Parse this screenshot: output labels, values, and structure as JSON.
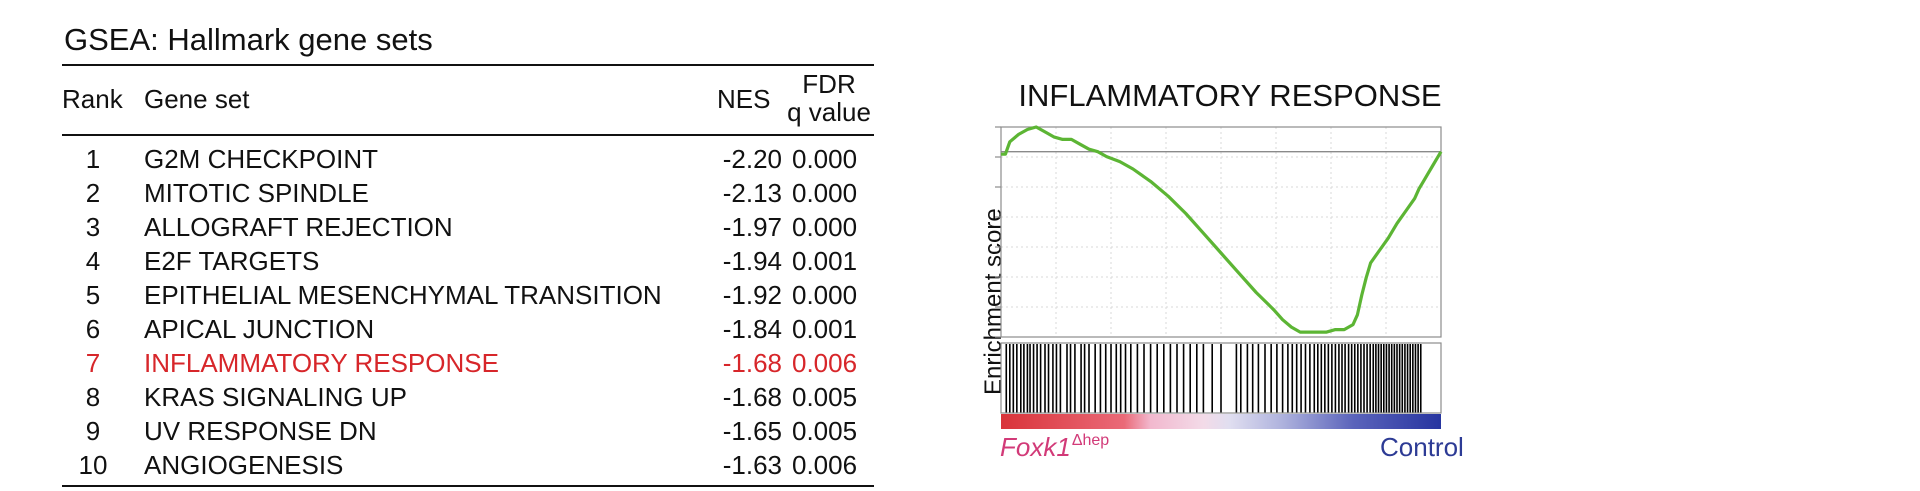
{
  "table": {
    "title": "GSEA: Hallmark gene sets",
    "headers": {
      "rank": "Rank",
      "gene_set": "Gene set",
      "nes": "NES",
      "fdr_line1": "FDR",
      "fdr_line2": "q value"
    },
    "rows": [
      {
        "rank": "1",
        "gene_set": "G2M CHECKPOINT",
        "nes": "-2.20",
        "fdr": "0.000"
      },
      {
        "rank": "2",
        "gene_set": "MITOTIC SPINDLE",
        "nes": "-2.13",
        "fdr": "0.000"
      },
      {
        "rank": "3",
        "gene_set": "ALLOGRAFT REJECTION",
        "nes": "-1.97",
        "fdr": "0.000"
      },
      {
        "rank": "4",
        "gene_set": "E2F TARGETS",
        "nes": "-1.94",
        "fdr": "0.001"
      },
      {
        "rank": "5",
        "gene_set": "EPITHELIAL MESENCHYMAL TRANSITION",
        "nes": "-1.92",
        "fdr": "0.000"
      },
      {
        "rank": "6",
        "gene_set": "APICAL JUNCTION",
        "nes": "-1.84",
        "fdr": "0.001"
      },
      {
        "rank": "7",
        "gene_set": "INFLAMMATORY RESPONSE",
        "nes": "-1.68",
        "fdr": "0.006",
        "highlight": true
      },
      {
        "rank": "8",
        "gene_set": "KRAS SIGNALING UP",
        "nes": "-1.68",
        "fdr": "0.005"
      },
      {
        "rank": "9",
        "gene_set": "UV RESPONSE DN",
        "nes": "-1.65",
        "fdr": "0.005"
      },
      {
        "rank": "10",
        "gene_set": "ANGIOGENESIS",
        "nes": "-1.63",
        "fdr": "0.006"
      }
    ],
    "highlight_color": "#d7262a"
  },
  "enrichment_plot": {
    "title": "INFLAMMATORY RESPONSE",
    "ylabel": "Enrichment score",
    "legend_left_gene": "Foxk1",
    "legend_left_sup": "Δhep",
    "legend_right": "Control",
    "legend_left_color": "#d23a78",
    "legend_right_color": "#2d3b95",
    "curve_color": "#5cb534",
    "chart_data": {
      "type": "line",
      "x_range": [
        0,
        1
      ],
      "y_range": [
        -0.75,
        0.1
      ],
      "baseline": 0,
      "es_curve": {
        "x": [
          0,
          0.01,
          0.02,
          0.04,
          0.06,
          0.08,
          0.1,
          0.12,
          0.14,
          0.16,
          0.18,
          0.2,
          0.22,
          0.24,
          0.27,
          0.3,
          0.34,
          0.38,
          0.42,
          0.46,
          0.5,
          0.54,
          0.58,
          0.62,
          0.64,
          0.66,
          0.68,
          0.7,
          0.72,
          0.74,
          0.76,
          0.78,
          0.8,
          0.81,
          0.82,
          0.83,
          0.84,
          0.86,
          0.88,
          0.9,
          0.92,
          0.94,
          0.95,
          0.96,
          0.97,
          0.98,
          0.99,
          1.0
        ],
        "y": [
          -0.01,
          -0.01,
          0.04,
          0.07,
          0.09,
          0.1,
          0.08,
          0.06,
          0.05,
          0.05,
          0.03,
          0.01,
          0.0,
          -0.02,
          -0.04,
          -0.07,
          -0.12,
          -0.18,
          -0.25,
          -0.33,
          -0.41,
          -0.49,
          -0.57,
          -0.64,
          -0.68,
          -0.71,
          -0.73,
          -0.73,
          -0.73,
          -0.73,
          -0.72,
          -0.72,
          -0.7,
          -0.66,
          -0.58,
          -0.51,
          -0.45,
          -0.4,
          -0.35,
          -0.29,
          -0.24,
          -0.19,
          -0.15,
          -0.12,
          -0.09,
          -0.06,
          -0.03,
          0.0
        ]
      },
      "hit_positions": [
        0.012,
        0.02,
        0.028,
        0.036,
        0.045,
        0.052,
        0.06,
        0.066,
        0.074,
        0.082,
        0.09,
        0.1,
        0.108,
        0.118,
        0.126,
        0.135,
        0.15,
        0.158,
        0.168,
        0.182,
        0.19,
        0.2,
        0.214,
        0.226,
        0.238,
        0.25,
        0.262,
        0.272,
        0.283,
        0.295,
        0.31,
        0.325,
        0.34,
        0.355,
        0.37,
        0.385,
        0.4,
        0.415,
        0.43,
        0.445,
        0.46,
        0.48,
        0.5,
        0.535,
        0.545,
        0.56,
        0.572,
        0.585,
        0.6,
        0.614,
        0.627,
        0.64,
        0.652,
        0.662,
        0.672,
        0.682,
        0.692,
        0.702,
        0.712,
        0.72,
        0.728,
        0.736,
        0.744,
        0.752,
        0.76,
        0.768,
        0.775,
        0.782,
        0.79,
        0.797,
        0.804,
        0.811,
        0.818,
        0.825,
        0.832,
        0.839,
        0.846,
        0.852,
        0.858,
        0.864,
        0.87,
        0.876,
        0.882,
        0.888,
        0.894,
        0.9,
        0.906,
        0.912,
        0.918,
        0.924,
        0.93,
        0.936,
        0.942,
        0.948,
        0.954
      ]
    }
  }
}
